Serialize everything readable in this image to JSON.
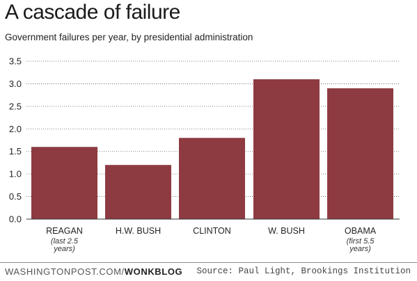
{
  "chart_data": {
    "type": "bar",
    "title": "A cascade of failure",
    "subtitle": "Government failures per year, by presidential administration",
    "categories": [
      "REAGAN",
      "H.W. BUSH",
      "CLINTON",
      "W. BUSH",
      "OBAMA"
    ],
    "category_notes": [
      [
        "(last 2.5",
        "years)"
      ],
      [],
      [],
      [],
      [
        "(first 5.5",
        "years)"
      ]
    ],
    "values": [
      1.6,
      1.2,
      1.8,
      3.1,
      2.9
    ],
    "yticks": [
      "0.0",
      "0.5",
      "1.0",
      "1.5",
      "2.0",
      "2.5",
      "3.0",
      "3.5"
    ],
    "ylim": [
      0,
      3.5
    ],
    "xlabel": "",
    "ylabel": "",
    "grid": true,
    "bar_color": "#8d3b41",
    "grid_color": "#555555"
  },
  "footer": {
    "site": "WASHINGTONPOST.COM/",
    "brand": "WONKBLOG",
    "source": "Source: Paul Light, Brookings Institution"
  }
}
